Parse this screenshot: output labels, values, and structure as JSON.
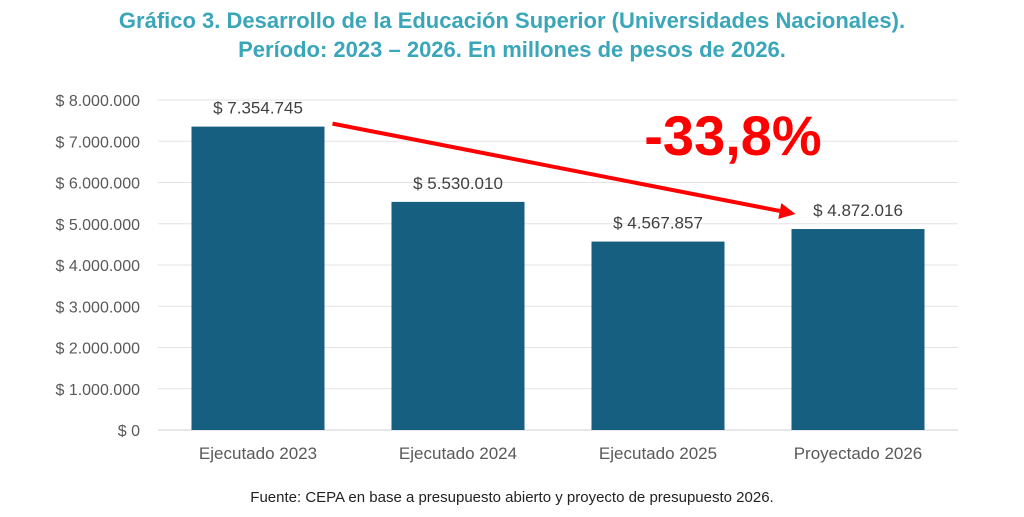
{
  "title_line1": "Gráfico 3. Desarrollo de la Educación Superior (Universidades Nacionales).",
  "title_line2": "Período: 2023 – 2026. En millones de pesos de 2026.",
  "source": "Fuente: CEPA en base a presupuesto abierto y proyecto de presupuesto 2026.",
  "colors": {
    "title": "#3aa6b9",
    "bar": "#175f80",
    "arrow": "#ff0000",
    "annotation": "#ff0000",
    "grid": "#e3e3e3",
    "tick_text": "#595959",
    "label_text": "#404040"
  },
  "chart_data": {
    "type": "bar",
    "categories": [
      "Ejecutado 2023",
      "Ejecutado 2024",
      "Ejecutado 2025",
      "Proyectado 2026"
    ],
    "values": [
      7354745,
      5530010,
      4567857,
      4872016
    ],
    "data_labels": [
      "$ 7.354.745",
      "$ 5.530.010",
      "$ 4.567.857",
      "$ 4.872.016"
    ],
    "ylim": [
      0,
      8000000
    ],
    "yticks": [
      0,
      1000000,
      2000000,
      3000000,
      4000000,
      5000000,
      6000000,
      7000000,
      8000000
    ],
    "ytick_labels": [
      "$ 0",
      "$ 1.000.000",
      "$ 2.000.000",
      "$ 3.000.000",
      "$ 4.000.000",
      "$ 5.000.000",
      "$ 6.000.000",
      "$ 7.000.000",
      "$ 8.000.000"
    ],
    "grid": true,
    "annotation": {
      "text": "-33,8%",
      "from_category": "Ejecutado 2023",
      "to_category": "Proyectado 2026"
    }
  }
}
